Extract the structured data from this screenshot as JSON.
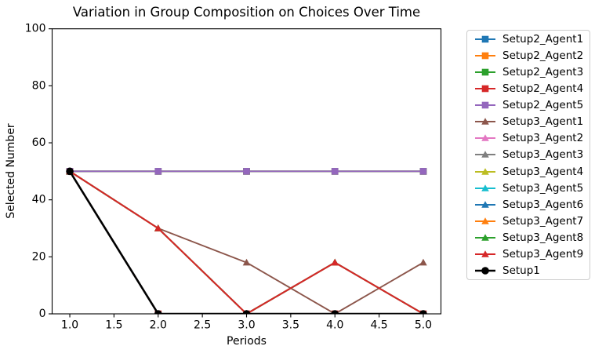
{
  "chart_data": {
    "type": "line",
    "title": "Variation in Group Composition on Choices Over Time",
    "xlabel": "Periods",
    "ylabel": "Selected Number",
    "x": [
      1,
      2,
      3,
      4,
      5
    ],
    "xlim": [
      0.8,
      5.2
    ],
    "ylim": [
      0,
      100
    ],
    "xticks": [
      1.0,
      1.5,
      2.0,
      2.5,
      3.0,
      3.5,
      4.0,
      4.5,
      5.0
    ],
    "xtick_labels": [
      "1.0",
      "1.5",
      "2.0",
      "2.5",
      "3.0",
      "3.5",
      "4.0",
      "4.5",
      "5.0"
    ],
    "yticks": [
      0,
      20,
      40,
      60,
      80,
      100
    ],
    "ytick_labels": [
      "0",
      "20",
      "40",
      "60",
      "80",
      "100"
    ],
    "grid": false,
    "legend_position": "outside-right",
    "axis_color": "#000000",
    "background": "#ffffff",
    "series": [
      {
        "name": "Setup2_Agent1",
        "color": "#1f77b4",
        "marker": "square",
        "linewidth": 1.9,
        "values": [
          50,
          50,
          50,
          50,
          50
        ]
      },
      {
        "name": "Setup2_Agent2",
        "color": "#ff7f0e",
        "marker": "square",
        "linewidth": 1.9,
        "values": [
          50,
          50,
          50,
          50,
          50
        ]
      },
      {
        "name": "Setup2_Agent3",
        "color": "#2ca02c",
        "marker": "square",
        "linewidth": 1.9,
        "values": [
          50,
          50,
          50,
          50,
          50
        ]
      },
      {
        "name": "Setup2_Agent4",
        "color": "#d62728",
        "marker": "square",
        "linewidth": 1.9,
        "values": [
          50,
          0,
          0,
          0,
          0
        ]
      },
      {
        "name": "Setup2_Agent5",
        "color": "#9467bd",
        "marker": "square",
        "linewidth": 1.9,
        "values": [
          50,
          50,
          50,
          50,
          50
        ]
      },
      {
        "name": "Setup3_Agent1",
        "color": "#8c564b",
        "marker": "triangle",
        "linewidth": 1.9,
        "values": [
          50,
          30,
          18,
          0,
          18
        ]
      },
      {
        "name": "Setup3_Agent2",
        "color": "#e377c2",
        "marker": "triangle",
        "linewidth": 1.9,
        "values": [
          50,
          30,
          0,
          18,
          0
        ]
      },
      {
        "name": "Setup3_Agent3",
        "color": "#7f7f7f",
        "marker": "triangle",
        "linewidth": 1.9,
        "values": [
          50,
          30,
          0,
          18,
          0
        ]
      },
      {
        "name": "Setup3_Agent4",
        "color": "#bcbd22",
        "marker": "triangle",
        "linewidth": 1.9,
        "values": [
          50,
          30,
          0,
          18,
          0
        ]
      },
      {
        "name": "Setup3_Agent5",
        "color": "#17becf",
        "marker": "triangle",
        "linewidth": 1.9,
        "values": [
          50,
          30,
          0,
          18,
          0
        ]
      },
      {
        "name": "Setup3_Agent6",
        "color": "#1f77b4",
        "marker": "triangle",
        "linewidth": 1.9,
        "values": [
          50,
          30,
          0,
          18,
          0
        ]
      },
      {
        "name": "Setup3_Agent7",
        "color": "#ff7f0e",
        "marker": "triangle",
        "linewidth": 1.9,
        "values": [
          50,
          30,
          0,
          18,
          0
        ]
      },
      {
        "name": "Setup3_Agent8",
        "color": "#2ca02c",
        "marker": "triangle",
        "linewidth": 1.9,
        "values": [
          50,
          30,
          0,
          18,
          0
        ]
      },
      {
        "name": "Setup3_Agent9",
        "color": "#d62728",
        "marker": "triangle",
        "linewidth": 2.0,
        "values": [
          50,
          30,
          0,
          18,
          0
        ]
      },
      {
        "name": "Setup1",
        "color": "#000000",
        "marker": "circle",
        "linewidth": 2.6,
        "values": [
          50,
          0,
          0,
          0,
          0
        ]
      }
    ]
  }
}
